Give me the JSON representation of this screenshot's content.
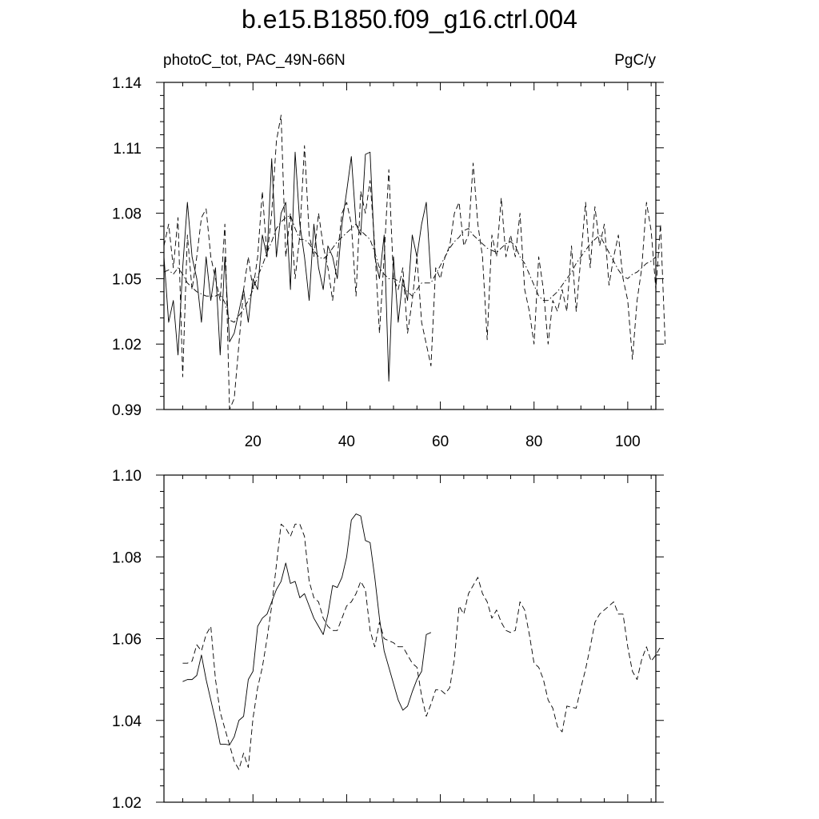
{
  "title": "b.e15.B1850.f09_g16.ctrl.004",
  "chart_data": [
    {
      "type": "line",
      "left_label": "photoC_tot, PAC_49N-66N",
      "right_label": "PgC/y",
      "xlim": [
        1,
        106
      ],
      "ylim": [
        0.99,
        1.14
      ],
      "xticks": [
        20,
        40,
        60,
        80,
        100
      ],
      "xticklabels": [
        "20",
        "40",
        "60",
        "80",
        "100"
      ],
      "yticks": [
        0.99,
        1.02,
        1.05,
        1.08,
        1.11,
        1.14
      ],
      "yticklabels": [
        "0.99",
        "1.02",
        "1.05",
        "1.08",
        "1.11",
        "1.14"
      ],
      "series": [
        {
          "style": "solid",
          "x_start": 1,
          "values": [
            1.06,
            1.03,
            1.04,
            1.015,
            1.055,
            1.085,
            1.06,
            1.05,
            1.03,
            1.06,
            1.04,
            1.055,
            1.015,
            1.06,
            1.021,
            1.025,
            1.035,
            1.045,
            1.03,
            1.05,
            1.045,
            1.07,
            1.06,
            1.105,
            1.06,
            1.08,
            1.085,
            1.045,
            1.108,
            1.075,
            1.06,
            1.04,
            1.075,
            1.055,
            1.045,
            1.065,
            1.06,
            1.05,
            1.075,
            1.09,
            1.106,
            1.075,
            1.07,
            1.107,
            1.108,
            1.06,
            1.05,
            1.07,
            1.003,
            1.06,
            1.03,
            1.05,
            1.04,
            1.07,
            1.06,
            1.075,
            1.085,
            1.05
          ]
        },
        {
          "style": "dash",
          "x_start": 1,
          "values": [
            1.065,
            1.075,
            1.055,
            1.078,
            1.005,
            1.07,
            1.045,
            1.06,
            1.078,
            1.082,
            1.06,
            1.05,
            1.04,
            1.075,
            0.99,
            0.995,
            1.02,
            1.045,
            1.06,
            1.045,
            1.06,
            1.09,
            1.06,
            1.08,
            1.113,
            1.125,
            1.06,
            1.08,
            1.05,
            1.07,
            1.111,
            1.07,
            1.06,
            1.08,
            1.065,
            1.055,
            1.04,
            1.06,
            1.08,
            1.085,
            1.075,
            1.042,
            1.09,
            1.08,
            1.095,
            1.065,
            1.025,
            1.06,
            1.1,
            1.05,
            1.045,
            1.055,
            1.025,
            1.04,
            1.06,
            1.03,
            1.02,
            1.01,
            1.055,
            1.05,
            1.06,
            1.065,
            1.08,
            1.085,
            1.065,
            1.07,
            1.103,
            1.075,
            1.06,
            1.022,
            1.07,
            1.06,
            1.087,
            1.06,
            1.07,
            1.06,
            1.08,
            1.045,
            1.035,
            1.02,
            1.06,
            1.045,
            1.02,
            1.04,
            1.035,
            1.045,
            1.035,
            1.065,
            1.035,
            1.06,
            1.085,
            1.055,
            1.083,
            1.065,
            1.075,
            1.047,
            1.06,
            1.07,
            1.05,
            1.04,
            1.013,
            1.04,
            1.055,
            1.085,
            1.072,
            1.045,
            1.075,
            1.02
          ]
        },
        {
          "style": "dashdot",
          "x_start": 1,
          "values": [
            1.053,
            1.054,
            1.052,
            1.055,
            1.052,
            1.048,
            1.046,
            1.044,
            1.043,
            1.042,
            1.042,
            1.042,
            1.043,
            1.039,
            1.031,
            1.03,
            1.033,
            1.036,
            1.04,
            1.045,
            1.051,
            1.056,
            1.062,
            1.067,
            1.073,
            1.076,
            1.078,
            1.079,
            1.073,
            1.068,
            1.068,
            1.066,
            1.063,
            1.06,
            1.059,
            1.061,
            1.064,
            1.067,
            1.069,
            1.071,
            1.073,
            1.075,
            1.072,
            1.07,
            1.068,
            1.062,
            1.055,
            1.052,
            1.05,
            1.05,
            1.049,
            1.047,
            1.044,
            1.042,
            1.045,
            1.048,
            1.048,
            1.048,
            1.052,
            1.056,
            1.06,
            1.064,
            1.067,
            1.069,
            1.072,
            1.073,
            1.07,
            1.068,
            1.066,
            1.064,
            1.063,
            1.062,
            1.064,
            1.066,
            1.067,
            1.065,
            1.06,
            1.057,
            1.052,
            1.047,
            1.042,
            1.04,
            1.04,
            1.042,
            1.044,
            1.047,
            1.05,
            1.053,
            1.057,
            1.06,
            1.063,
            1.066,
            1.068,
            1.07,
            1.066,
            1.062,
            1.058,
            1.054,
            1.051,
            1.05,
            1.052,
            1.053,
            1.055,
            1.057,
            1.058,
            1.06
          ]
        }
      ]
    },
    {
      "type": "line",
      "xlim": [
        1,
        106
      ],
      "ylim": [
        1.02,
        1.1
      ],
      "xticks": [
        20,
        40,
        60,
        80,
        100
      ],
      "yticks": [
        1.02,
        1.04,
        1.06,
        1.08,
        1.1
      ],
      "yticklabels": [
        "1.02",
        "1.04",
        "1.06",
        "1.08",
        "1.10"
      ],
      "series": [
        {
          "style": "solid",
          "x_start": 5,
          "values": [
            1.0495,
            1.05,
            1.05,
            1.051,
            1.056,
            1.05,
            1.045,
            1.04,
            1.0342,
            1.0342,
            1.034,
            1.036,
            1.04,
            1.041,
            1.05,
            1.052,
            1.063,
            1.065,
            1.066,
            1.069,
            1.072,
            1.074,
            1.0785,
            1.0735,
            1.074,
            1.07,
            1.071,
            1.068,
            1.065,
            1.063,
            1.061,
            1.066,
            1.073,
            1.0725,
            1.075,
            1.08,
            1.089,
            1.0905,
            1.09,
            1.084,
            1.0835,
            1.075,
            1.065,
            1.057,
            1.053,
            1.049,
            1.045,
            1.0425,
            1.0435,
            1.047,
            1.05,
            1.052,
            1.061,
            1.0615
          ]
        },
        {
          "style": "dash",
          "x_start": 5,
          "values": [
            1.054,
            1.054,
            1.0545,
            1.0585,
            1.057,
            1.061,
            1.063,
            1.05,
            1.042,
            1.038,
            1.034,
            1.03,
            1.028,
            1.032,
            1.0285,
            1.0405,
            1.048,
            1.053,
            1.06,
            1.068,
            1.078,
            1.088,
            1.087,
            1.085,
            1.088,
            1.088,
            1.085,
            1.074,
            1.07,
            1.069,
            1.065,
            1.063,
            1.062,
            1.062,
            1.065,
            1.068,
            1.069,
            1.071,
            1.074,
            1.072,
            1.062,
            1.058,
            1.064,
            1.06,
            1.0595,
            1.059,
            1.058,
            1.058,
            1.056,
            1.054,
            1.053,
            1.046,
            1.041,
            1.044,
            1.0475,
            1.0475,
            1.0465,
            1.048,
            1.055,
            1.068,
            1.066,
            1.071,
            1.073,
            1.075,
            1.071,
            1.069,
            1.065,
            1.067,
            1.064,
            1.062,
            1.0615,
            1.062,
            1.069,
            1.067,
            1.061,
            1.054,
            1.053,
            1.05,
            1.045,
            1.043,
            1.0385,
            1.0372,
            1.0435,
            1.0432,
            1.043,
            1.048,
            1.0525,
            1.058,
            1.064,
            1.066,
            1.067,
            1.068,
            1.069,
            1.066,
            1.066,
            1.058,
            1.052,
            1.05,
            1.055,
            1.058,
            1.0545,
            1.056,
            1.058
          ]
        }
      ]
    }
  ]
}
